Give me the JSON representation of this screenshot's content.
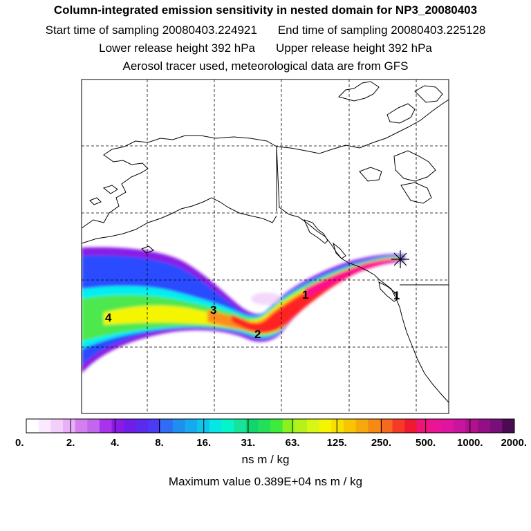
{
  "header": {
    "title": "Column-integrated emission sensitivity in nested domain for NP3_20080403",
    "start": "Start time of sampling 20080403.224921",
    "end": "End time of sampling 20080403.225128",
    "lower": "Lower release height  392 hPa",
    "upper": "Upper release height  392 hPa",
    "tracer": "Aerosol tracer used, meteorological data are from GFS"
  },
  "map": {
    "labels": [
      "1",
      "2",
      "3",
      "4"
    ],
    "release_marker": "asterisk-icon",
    "plume_colors": {
      "violet": "#8a1be6",
      "blue": "#2b4cff",
      "cyan": "#00f0f0",
      "green": "#4de84d",
      "yellow": "#f5f500",
      "orange": "#ff8c1a",
      "red": "#ff2020",
      "magenta": "#ff0a8c"
    }
  },
  "colorbar": {
    "colors": [
      "#ffffff",
      "#fbeaff",
      "#f3d0fb",
      "#e8b0f6",
      "#d47ff0",
      "#c266ee",
      "#a733eb",
      "#8a1be6",
      "#6f1ee9",
      "#5a2bef",
      "#4a3cf5",
      "#2e6df5",
      "#1e8fee",
      "#16a9f0",
      "#0fc6ea",
      "#05e6e6",
      "#05f5c8",
      "#16e39c",
      "#10d46c",
      "#22e05a",
      "#3ceb3c",
      "#8af01e",
      "#b4f21a",
      "#d8f514",
      "#f5f500",
      "#f7e000",
      "#f7c600",
      "#f7a80a",
      "#f78a14",
      "#f56a1e",
      "#f53a28",
      "#f01a30",
      "#f0147a",
      "#ec1496",
      "#e014a0",
      "#c8149e",
      "#b0128e",
      "#960e86",
      "#78107a",
      "#4c0a52"
    ],
    "ticks": [
      "0.",
      "2.",
      "4.",
      "8.",
      "16.",
      "31.",
      "63.",
      "125.",
      "250.",
      "500.",
      "1000.",
      "2000."
    ],
    "units": "ns m / kg",
    "max_value": "Maximum value  0.389E+04 ns m / kg"
  }
}
